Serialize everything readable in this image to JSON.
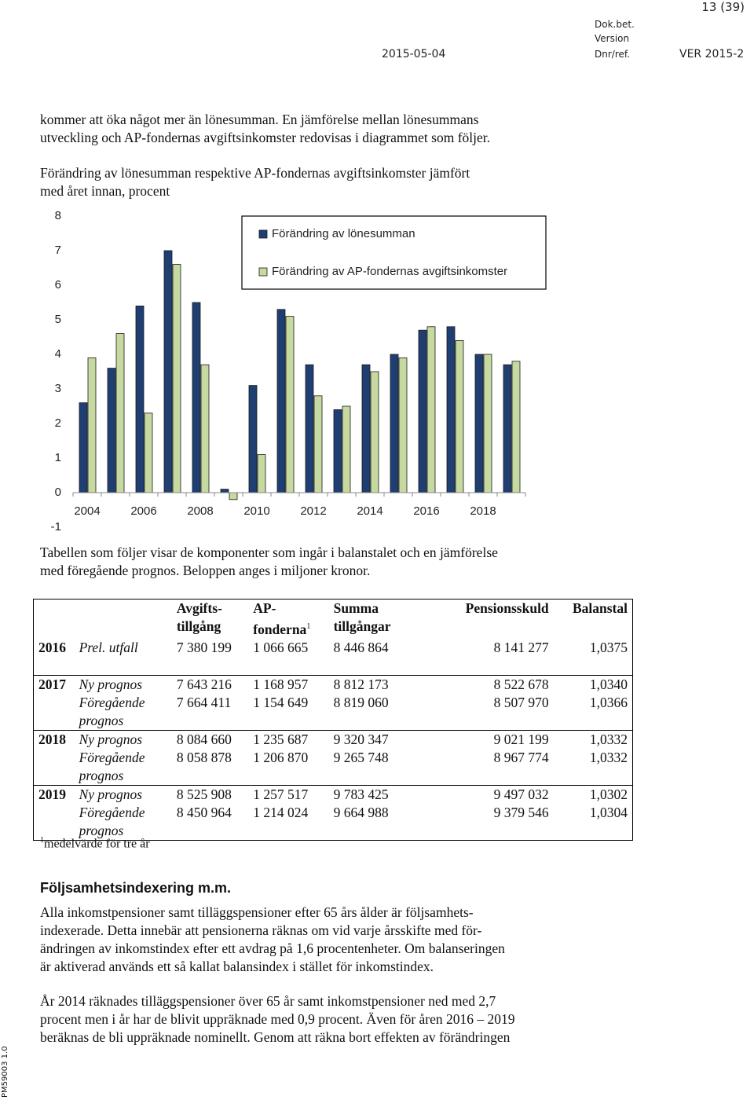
{
  "header": {
    "page": "13 (39)",
    "doc_label": "Dok.bet.",
    "version_label": "Version",
    "date": "2015-05-04",
    "ref_label": "Dnr/ref.",
    "ref_value": "VER 2015-2"
  },
  "side_label": "PM59003 1.0",
  "intro_lines": [
    "kommer att öka något mer än lönesumman. En jämförelse mellan lönesummans",
    "utveckling och AP-fondernas avgiftsinkomster redovisas i diagrammet som följer."
  ],
  "chart_data": {
    "type": "bar",
    "title_lines": [
      "Förändring av lönesumman respektive AP-fondernas avgiftsinkomster jämfört",
      "med året innan, procent"
    ],
    "categories": [
      "2004",
      null,
      "2006",
      null,
      "2008",
      null,
      "2010",
      null,
      "2012",
      null,
      "2014",
      null,
      "2016",
      null,
      "2018",
      null
    ],
    "series": [
      {
        "name": "Förändring av lönesumman",
        "color": "#1f3f73",
        "values": [
          2.6,
          3.6,
          5.4,
          7.0,
          5.5,
          0.1,
          3.1,
          5.3,
          3.7,
          2.4,
          3.7,
          4.0,
          4.7,
          4.8,
          4.0,
          3.7
        ]
      },
      {
        "name": "Förändring av AP-fondernas avgiftsinkomster",
        "color": "#c6d9a1",
        "values": [
          3.9,
          4.6,
          2.3,
          6.6,
          3.7,
          -0.2,
          1.1,
          5.1,
          2.8,
          2.5,
          3.5,
          3.9,
          4.8,
          4.4,
          4.0,
          3.8
        ]
      }
    ],
    "ylim": [
      -1,
      8
    ],
    "yticks": [
      -1,
      0,
      1,
      2,
      3,
      4,
      5,
      6,
      7,
      8
    ],
    "grid": false,
    "legend": "top-right"
  },
  "table_intro_lines": [
    "Tabellen som följer visar de komponenter som ingår i balanstalet och en jämförelse",
    "med föregående prognos. Beloppen anges i miljoner kronor."
  ],
  "table": {
    "headers": [
      "Avgifts- tillgång",
      "AP- fonderna",
      "Summa tillgångar",
      "Pensionsskuld",
      "Balanstal"
    ],
    "header_note_mark": "1",
    "rows": [
      {
        "year": "2016",
        "label": "Prel. utfall",
        "values": [
          "7 380 199",
          "1 066 665",
          "8 446 864",
          "8 141 277",
          "1,0375"
        ]
      },
      {
        "year": "2017",
        "label": "Ny prognos",
        "values": [
          "7 643 216",
          "1 168 957",
          "8 812 173",
          "8 522 678",
          "1,0340"
        ]
      },
      {
        "label": "Föregående prognos",
        "values": [
          "7 664 411",
          "1 154 649",
          "8 819 060",
          "8 507 970",
          "1,0366"
        ]
      },
      {
        "year": "2018",
        "label": "Ny prognos",
        "values": [
          "8 084 660",
          "1 235 687",
          "9 320 347",
          "9 021 199",
          "1,0332"
        ]
      },
      {
        "label": "Föregående prognos",
        "values": [
          "8 058 878",
          "1 206 870",
          "9 265 748",
          "8 967 774",
          "1,0332"
        ]
      },
      {
        "year": "2019",
        "label": "Ny prognos",
        "values": [
          "8 525 908",
          "1 257 517",
          "9 783 425",
          "9 497 032",
          "1,0302"
        ]
      },
      {
        "label": "Föregående prognos",
        "values": [
          "8 450 964",
          "1 214 024",
          "9 664 988",
          "9 379 546",
          "1,0304"
        ]
      }
    ],
    "footnote_mark": "1",
    "footnote": "medelvärde för tre år"
  },
  "section": {
    "heading": "Följsamhetsindexering m.m.",
    "paragraph_1": [
      "Alla inkomstpensioner samt tilläggspensioner efter 65 års ålder är följsamhets-",
      "indexerade. Detta innebär att pensionerna räknas om vid varje årsskifte med för-",
      "ändringen av inkomstindex efter ett avdrag på 1,6 procentenheter. Om balanseringen",
      "är aktiverad används ett så kallat balansindex i stället för inkomstindex."
    ],
    "paragraph_2": [
      "År 2014 räknades tilläggspensioner över 65 år samt inkomstpensioner ned med 2,7",
      "procent men i år har de blivit uppräknade med 0,9 procent. Även för åren 2016 – 2019",
      "beräknas de bli uppräknade nominellt. Genom att räkna bort effekten av förändringen"
    ]
  }
}
